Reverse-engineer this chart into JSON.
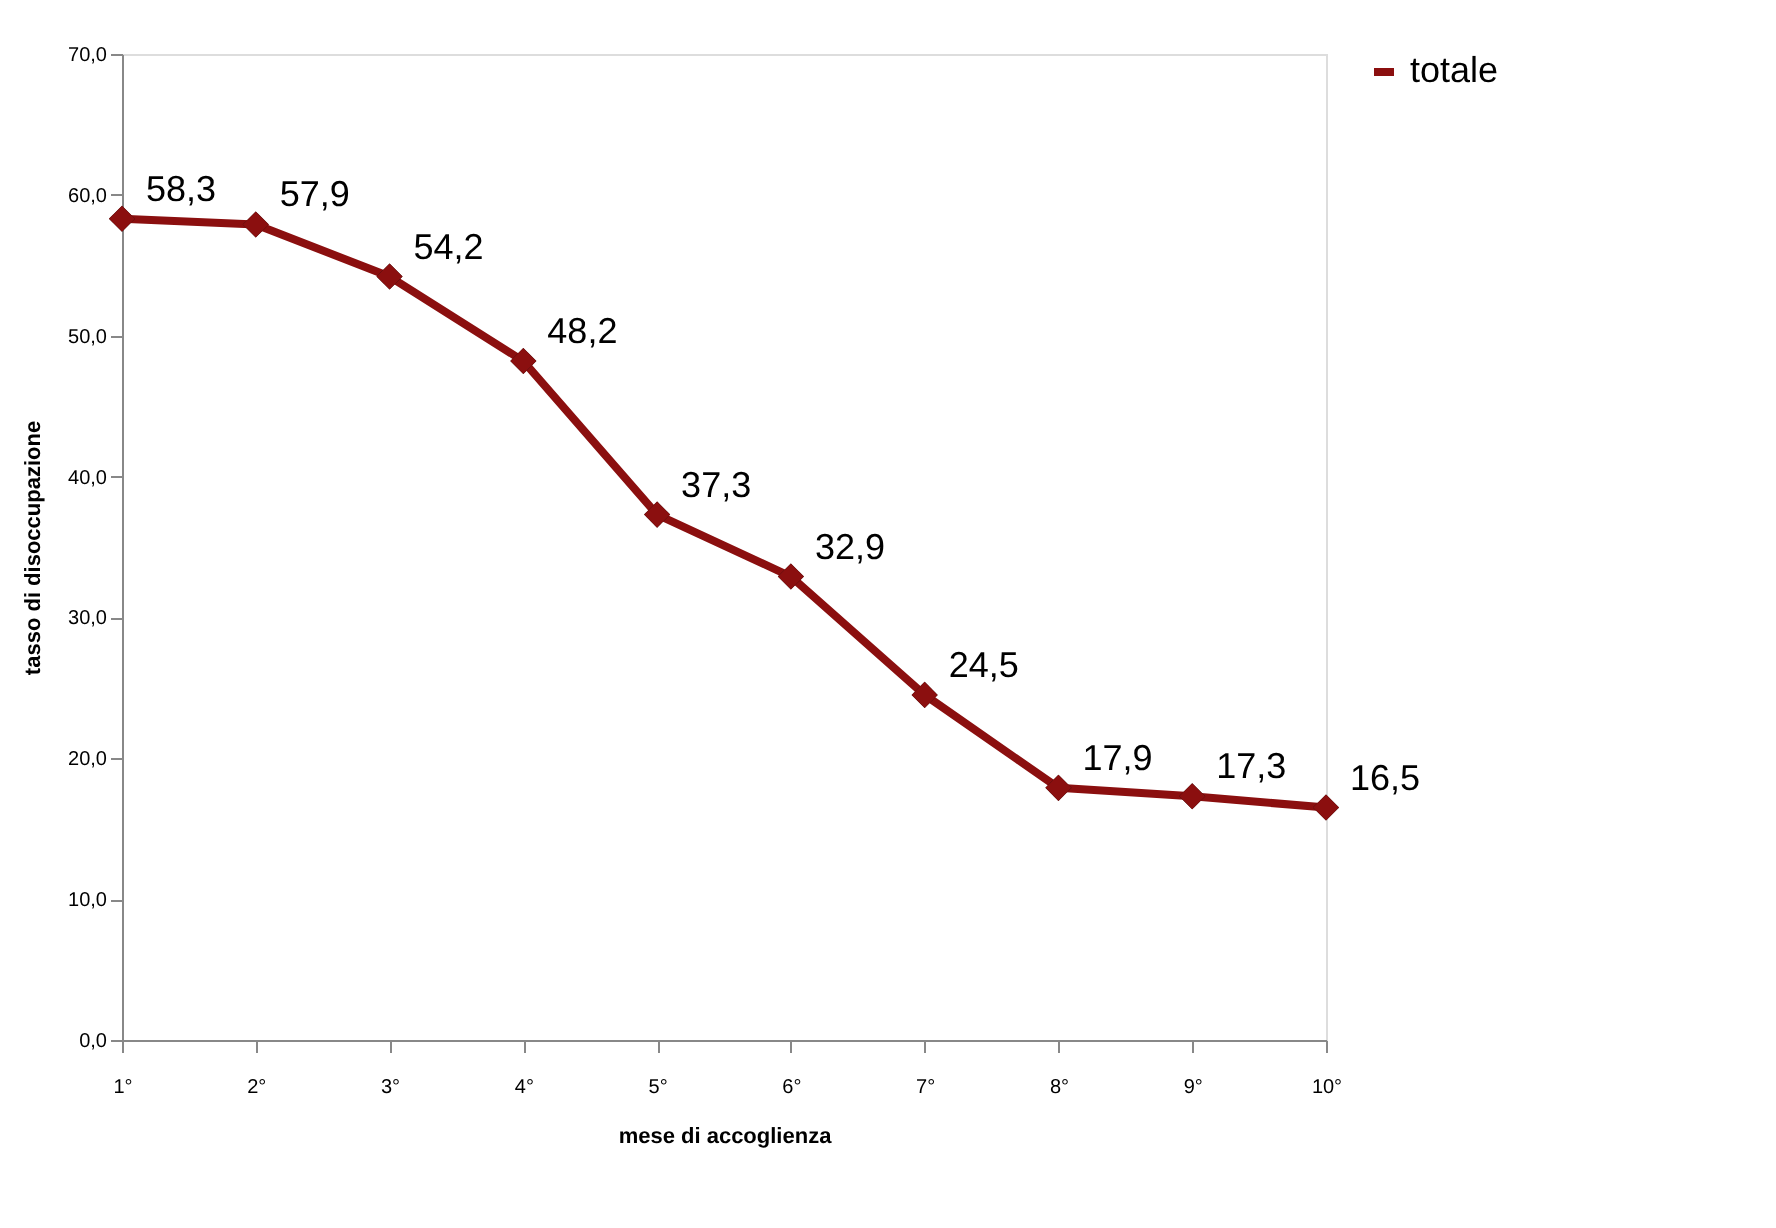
{
  "chart_data": {
    "type": "line",
    "xlabel": "mese di accoglienza",
    "ylabel": "tasso di disoccupazione",
    "categories": [
      "1°",
      "2°",
      "3°",
      "4°",
      "5°",
      "6°",
      "7°",
      "8°",
      "9°",
      "10°"
    ],
    "series": [
      {
        "name": "totale",
        "color": "#8b0f0f",
        "values": [
          58.3,
          57.9,
          54.2,
          48.2,
          37.3,
          32.9,
          24.5,
          17.9,
          17.3,
          16.5
        ],
        "value_labels": [
          "58,3",
          "57,9",
          "54,2",
          "48,2",
          "37,3",
          "32,9",
          "24,5",
          "17,9",
          "17,3",
          "16,5"
        ]
      }
    ],
    "ylim": [
      0,
      70
    ],
    "yticks": [
      {
        "value": 0,
        "label": "0,0"
      },
      {
        "value": 10,
        "label": "10,0"
      },
      {
        "value": 20,
        "label": "20,0"
      },
      {
        "value": 30,
        "label": "30,0"
      },
      {
        "value": 40,
        "label": "40,0"
      },
      {
        "value": 50,
        "label": "50,0"
      },
      {
        "value": 60,
        "label": "60,0"
      },
      {
        "value": 70,
        "label": "70,0"
      }
    ],
    "grid": false,
    "legend": "right",
    "marker": "diamond",
    "line_style": "solid"
  }
}
